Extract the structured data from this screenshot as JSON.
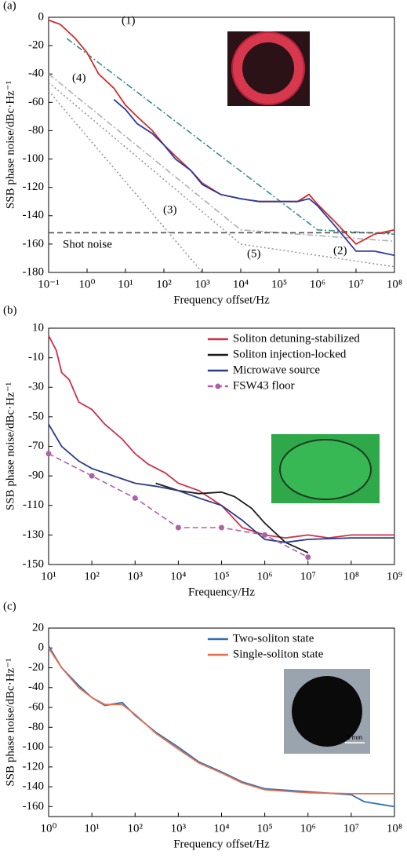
{
  "chart_data": [
    {
      "type": "line",
      "panel_label": "(a)",
      "xlabel": "Frequency offset/Hz",
      "ylabel": "SSB phase noise/dBc·Hz⁻¹",
      "log_x": true,
      "xlim": [
        0.1,
        100000000
      ],
      "ylim": [
        -180,
        0
      ],
      "xticks": [
        {
          "value": 0.1,
          "label": "10⁻¹"
        },
        {
          "value": 1,
          "label": "10⁰"
        },
        {
          "value": 10,
          "label": "10¹"
        },
        {
          "value": 100,
          "label": "10²"
        },
        {
          "value": 1000,
          "label": "10³"
        },
        {
          "value": 10000,
          "label": "10⁴"
        },
        {
          "value": 100000,
          "label": "10⁵"
        },
        {
          "value": 1000000,
          "label": "10⁶"
        },
        {
          "value": 10000000,
          "label": "10⁷"
        },
        {
          "value": 100000000,
          "label": "10⁸"
        }
      ],
      "yticks": [
        0,
        -20,
        -40,
        -60,
        -80,
        -100,
        -120,
        -140,
        -160,
        -180
      ],
      "series": [
        {
          "color": "#9a9a9a",
          "dash": "dotted",
          "x": [
            0.1,
            1000
          ],
          "values": [
            -52,
            -180
          ]
        },
        {
          "color": "#9a9a9a",
          "dash": "dotted",
          "x": [
            0.1,
            10000,
            100000000
          ],
          "values": [
            -46,
            -160,
            -176
          ]
        },
        {
          "color": "#b0b0b0",
          "dash": "dashdot",
          "x": [
            0.1,
            10000,
            100000000
          ],
          "values": [
            -40,
            -150,
            -158
          ]
        },
        {
          "color": "#3a8a8a",
          "dash": "dashdot",
          "x": [
            0.3,
            1000000,
            100000000
          ],
          "values": [
            -15,
            -150,
            -153
          ]
        },
        {
          "color": "#555555",
          "dash": "dashed",
          "x": [
            0.1,
            100000000
          ],
          "values": [
            -152,
            -152
          ]
        },
        {
          "color": "#d42a2a",
          "x": [
            0.1,
            0.2,
            0.5,
            1,
            2,
            5,
            10,
            20,
            50,
            100,
            200,
            500,
            1000,
            3000,
            10000,
            30000,
            100000,
            300000,
            600000,
            1000000,
            3000000,
            10000000,
            30000000,
            100000000
          ],
          "values": [
            -2,
            -5,
            -15,
            -25,
            -40,
            -50,
            -62,
            -70,
            -80,
            -90,
            -98,
            -108,
            -117,
            -125,
            -128,
            -130,
            -130,
            -130,
            -125,
            -132,
            -145,
            -160,
            -153,
            -150
          ]
        },
        {
          "color": "#2a3aa8",
          "x": [
            5,
            10,
            20,
            50,
            100,
            200,
            500,
            1000,
            3000,
            10000,
            30000,
            100000,
            300000,
            600000,
            1000000,
            3000000,
            10000000,
            30000000,
            100000000
          ],
          "values": [
            -58,
            -65,
            -75,
            -82,
            -90,
            -100,
            -108,
            -118,
            -125,
            -128,
            -130,
            -130,
            -130,
            -128,
            -133,
            -148,
            -165,
            -165,
            -168
          ]
        }
      ],
      "annotations": [
        {
          "text": "(1)",
          "color": "#d42a2a"
        },
        {
          "text": "(2)",
          "color": "#2a3aa8"
        },
        {
          "text": "(3)",
          "color": "#000000"
        },
        {
          "text": "(4)",
          "color": "#9a7ad0"
        },
        {
          "text": "(5)",
          "color": "#22cc22"
        },
        {
          "text": "Shot noise",
          "color": "#000000"
        }
      ]
    },
    {
      "type": "line",
      "panel_label": "(b)",
      "xlabel": "Frequency/Hz",
      "ylabel": "SSB phase noise/dBc·Hz⁻¹",
      "log_x": true,
      "xlim": [
        10,
        1000000000
      ],
      "ylim": [
        -150,
        10
      ],
      "legend": "upper right",
      "xticks": [
        {
          "value": 10,
          "label": "10¹"
        },
        {
          "value": 100,
          "label": "10²"
        },
        {
          "value": 1000,
          "label": "10³"
        },
        {
          "value": 10000,
          "label": "10⁴"
        },
        {
          "value": 100000,
          "label": "10⁵"
        },
        {
          "value": 1000000,
          "label": "10⁶"
        },
        {
          "value": 10000000,
          "label": "10⁷"
        },
        {
          "value": 100000000,
          "label": "10⁸"
        },
        {
          "value": 1000000000,
          "label": "10⁹"
        }
      ],
      "yticks": [
        10,
        -10,
        -30,
        -50,
        -70,
        -90,
        -110,
        -130,
        -150
      ],
      "series": [
        {
          "name": "Soliton detuning-stabilized",
          "color": "#d0304a",
          "x": [
            10,
            15,
            20,
            30,
            50,
            100,
            200,
            500,
            1000,
            2000,
            5000,
            10000,
            30000,
            100000,
            300000,
            1000000,
            3000000,
            10000000,
            30000000,
            100000000,
            1000000000
          ],
          "values": [
            5,
            -5,
            -20,
            -25,
            -40,
            -45,
            -55,
            -65,
            -75,
            -82,
            -88,
            -95,
            -100,
            -110,
            -125,
            -130,
            -132,
            -130,
            -132,
            -130,
            -130
          ]
        },
        {
          "name": "Soliton injection-locked",
          "color": "#1a1a1a",
          "x": [
            3000,
            10000,
            30000,
            100000,
            200000,
            500000,
            1000000,
            3000000,
            10000000
          ],
          "values": [
            -95,
            -100,
            -102,
            -101,
            -104,
            -112,
            -122,
            -135,
            -142
          ]
        },
        {
          "name": "Microwave source",
          "color": "#2b3a8a",
          "x": [
            10,
            20,
            50,
            100,
            200,
            500,
            1000,
            3000,
            10000,
            30000,
            100000,
            300000,
            1000000,
            3000000,
            10000000,
            100000000,
            1000000000
          ],
          "values": [
            -55,
            -70,
            -80,
            -85,
            -88,
            -92,
            -95,
            -97,
            -100,
            -105,
            -110,
            -120,
            -133,
            -135,
            -133,
            -132,
            -132
          ]
        },
        {
          "name": "FSW43 floor",
          "color": "#b060a8",
          "dash": "dashed",
          "marker": "circle",
          "x": [
            10,
            100,
            1000,
            10000,
            100000,
            1000000,
            10000000
          ],
          "values": [
            -75,
            -90,
            -105,
            -125,
            -125,
            -130,
            -145
          ]
        }
      ]
    },
    {
      "type": "line",
      "panel_label": "(c)",
      "xlabel": "Frequency offset/Hz",
      "ylabel": "SSB phase noise/dBc·Hz⁻¹",
      "log_x": true,
      "xlim": [
        1,
        100000000
      ],
      "ylim": [
        -170,
        20
      ],
      "legend": "upper right",
      "inset_scale": "2 mm",
      "xticks": [
        {
          "value": 1,
          "label": "10⁰"
        },
        {
          "value": 10,
          "label": "10¹"
        },
        {
          "value": 100,
          "label": "10²"
        },
        {
          "value": 1000,
          "label": "10³"
        },
        {
          "value": 10000,
          "label": "10⁴"
        },
        {
          "value": 100000,
          "label": "10⁵"
        },
        {
          "value": 1000000,
          "label": "10⁶"
        },
        {
          "value": 10000000,
          "label": "10⁷"
        },
        {
          "value": 100000000,
          "label": "10⁸"
        }
      ],
      "yticks": [
        20,
        0,
        -20,
        -40,
        -60,
        -80,
        -100,
        -120,
        -140,
        -160
      ],
      "series": [
        {
          "name": "Two-soliton state",
          "color": "#2e6db4",
          "x": [
            1,
            2,
            5,
            10,
            20,
            50,
            100,
            300,
            1000,
            3000,
            10000,
            30000,
            100000,
            1000000,
            10000000,
            20000000,
            100000000
          ],
          "values": [
            2,
            -20,
            -38,
            -50,
            -58,
            -55,
            -68,
            -85,
            -100,
            -115,
            -125,
            -135,
            -142,
            -145,
            -148,
            -155,
            -160
          ]
        },
        {
          "name": "Single-soliton state",
          "color": "#e07050",
          "x": [
            1,
            2,
            5,
            10,
            20,
            50,
            100,
            300,
            1000,
            3000,
            10000,
            30000,
            100000,
            1000000,
            10000000,
            100000000
          ],
          "values": [
            0,
            -20,
            -40,
            -50,
            -57,
            -57,
            -67,
            -86,
            -102,
            -116,
            -126,
            -136,
            -143,
            -146,
            -147,
            -147
          ]
        }
      ]
    }
  ]
}
